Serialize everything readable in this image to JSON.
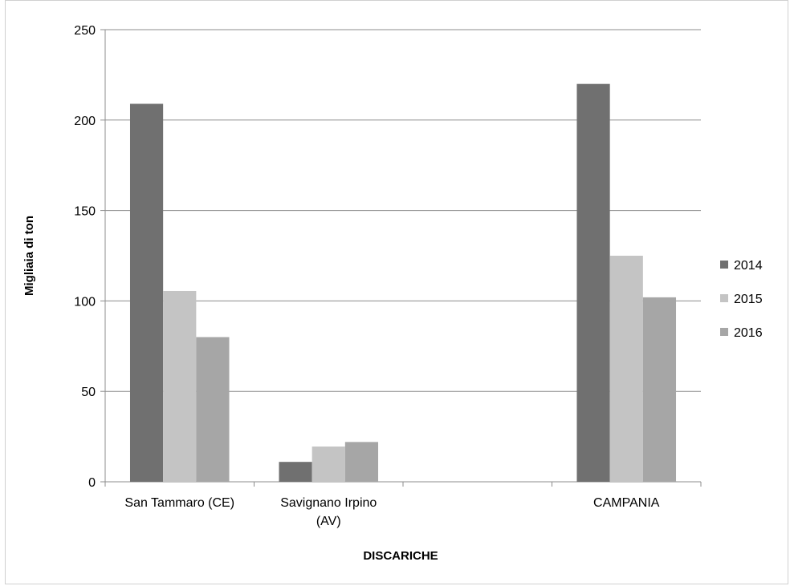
{
  "chart_data": {
    "type": "bar",
    "title": "",
    "xlabel": "DISCARICHE",
    "ylabel": "Migliaia di ton",
    "ylim": [
      0,
      250
    ],
    "yticks": [
      0,
      50,
      100,
      150,
      200,
      250
    ],
    "grid": true,
    "legend": "right",
    "categories": [
      {
        "lines": [
          "San Tammaro (CE)"
        ]
      },
      {
        "lines": [
          "Savignano Irpino",
          "(AV)"
        ]
      },
      {
        "lines": []
      },
      {
        "lines": [
          "CAMPANIA"
        ]
      }
    ],
    "series": [
      {
        "name": "2014",
        "color": "#707070",
        "values": [
          209,
          11,
          null,
          220
        ]
      },
      {
        "name": "2015",
        "color": "#c4c4c4",
        "values": [
          105.5,
          19.5,
          null,
          125
        ]
      },
      {
        "name": "2016",
        "color": "#a6a6a6",
        "values": [
          80,
          22,
          null,
          102
        ]
      }
    ]
  }
}
